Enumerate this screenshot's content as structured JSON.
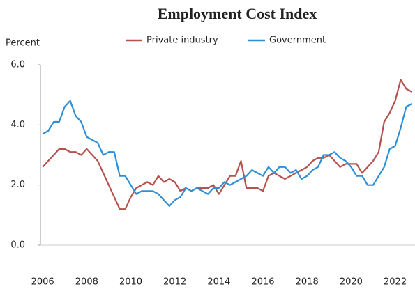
{
  "chart_data": {
    "type": "line",
    "title": "Employment  Cost Index",
    "y_label": "Percent",
    "x": [
      2006,
      2006.25,
      2006.5,
      2006.75,
      2007,
      2007.25,
      2007.5,
      2007.75,
      2008,
      2008.25,
      2008.5,
      2008.75,
      2009,
      2009.25,
      2009.5,
      2009.75,
      2010,
      2010.25,
      2010.5,
      2010.75,
      2011,
      2011.25,
      2011.5,
      2011.75,
      2012,
      2012.25,
      2012.5,
      2012.75,
      2013,
      2013.25,
      2013.5,
      2013.75,
      2014,
      2014.25,
      2014.5,
      2014.75,
      2015,
      2015.25,
      2015.5,
      2015.75,
      2016,
      2016.25,
      2016.5,
      2016.75,
      2017,
      2017.25,
      2017.5,
      2017.75,
      2018,
      2018.25,
      2018.5,
      2018.75,
      2019,
      2019.25,
      2019.5,
      2019.75,
      2020,
      2020.25,
      2020.5,
      2020.75,
      2021,
      2021.25,
      2021.5,
      2021.75,
      2022,
      2022.25,
      2022.5,
      2022.75
    ],
    "series": [
      {
        "name": "Private industry",
        "color": "#b5524d",
        "values": [
          2.6,
          2.8,
          3.0,
          3.2,
          3.2,
          3.1,
          3.1,
          3.0,
          3.2,
          3.0,
          2.8,
          2.4,
          2.0,
          1.6,
          1.2,
          1.2,
          1.6,
          1.9,
          2.0,
          2.1,
          2.0,
          2.3,
          2.1,
          2.2,
          2.1,
          1.8,
          1.9,
          1.8,
          1.9,
          1.9,
          1.9,
          2.0,
          1.7,
          2.0,
          2.3,
          2.3,
          2.8,
          1.9,
          1.9,
          1.9,
          1.8,
          2.3,
          2.4,
          2.3,
          2.2,
          2.3,
          2.4,
          2.5,
          2.6,
          2.8,
          2.9,
          2.9,
          3.0,
          2.8,
          2.6,
          2.7,
          2.7,
          2.7,
          2.4,
          2.6,
          2.8,
          3.1,
          4.1,
          4.4,
          4.8,
          5.5,
          5.2,
          5.1
        ]
      },
      {
        "name": "Government",
        "color": "#2e8fd6",
        "values": [
          3.7,
          3.8,
          4.1,
          4.1,
          4.6,
          4.8,
          4.3,
          4.1,
          3.6,
          3.5,
          3.4,
          3.0,
          3.1,
          3.1,
          2.3,
          2.3,
          2.0,
          1.7,
          1.8,
          1.8,
          1.8,
          1.7,
          1.5,
          1.3,
          1.5,
          1.6,
          1.9,
          1.8,
          1.9,
          1.8,
          1.7,
          1.9,
          1.9,
          2.1,
          2.0,
          2.1,
          2.2,
          2.3,
          2.5,
          2.4,
          2.3,
          2.6,
          2.4,
          2.6,
          2.6,
          2.4,
          2.5,
          2.2,
          2.3,
          2.5,
          2.6,
          3.0,
          3.0,
          3.1,
          2.9,
          2.8,
          2.6,
          2.3,
          2.3,
          2.0,
          2.0,
          2.3,
          2.6,
          3.2,
          3.3,
          3.9,
          4.6,
          4.7
        ]
      }
    ],
    "xlim": [
      2005.9,
      2022.9
    ],
    "xticks": [
      2006,
      2008,
      2010,
      2012,
      2014,
      2016,
      2018,
      2020,
      2022
    ],
    "ylim": [
      0,
      6
    ],
    "yticks": [
      {
        "value": 0,
        "label": "0.0"
      },
      {
        "value": 2,
        "label": "2.0"
      },
      {
        "value": 4,
        "label": "4.0"
      },
      {
        "value": 6,
        "label": "6.0"
      }
    ],
    "grid": false
  }
}
